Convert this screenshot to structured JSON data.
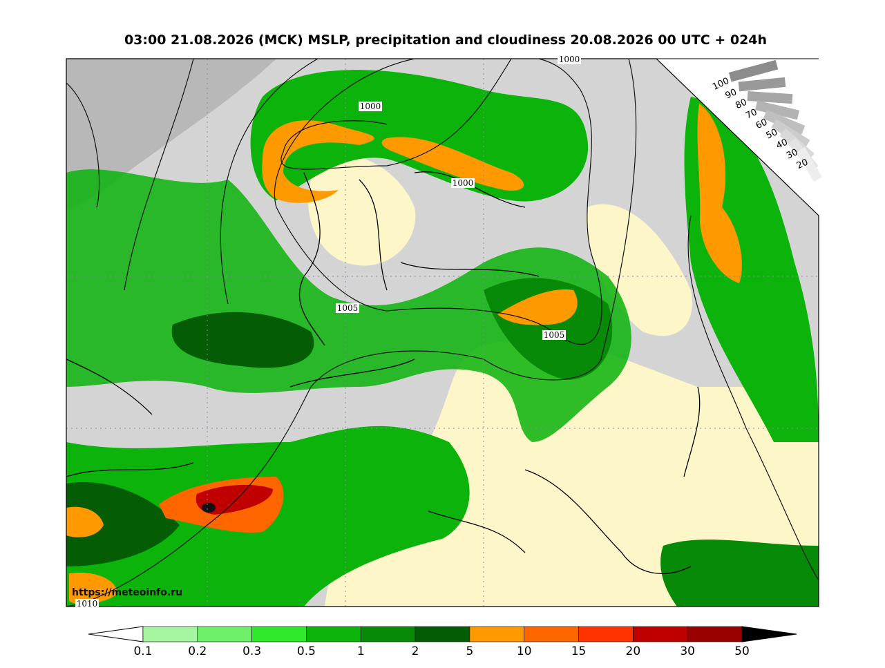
{
  "header": {
    "title": "03:00 21.08.2026 (MCK) MSLP, precipitation and cloudiness 20.08.2026 00 UTC + 024h"
  },
  "map": {
    "isobar_labels": [
      "1000",
      "1000",
      "1000",
      "1005",
      "1005",
      "1010"
    ],
    "credit": "https://meteoinfo.ru"
  },
  "cloud_scale": {
    "labels": [
      "100",
      "90",
      "80",
      "70",
      "60",
      "50",
      "40",
      "30",
      "20"
    ],
    "colors": [
      "#8c8c8c",
      "#999999",
      "#a6a6a6",
      "#b3b3b3",
      "#bfbfbf",
      "#cccccc",
      "#d9d9d9",
      "#e3e3e3",
      "#ededed"
    ]
  },
  "colorbar": {
    "labels": [
      "0.1",
      "0.2",
      "0.3",
      "0.5",
      "1",
      "2",
      "5",
      "10",
      "15",
      "20",
      "30",
      "50"
    ],
    "colors": [
      "#a6f5a0",
      "#6ef06a",
      "#2ee82a",
      "#0bb30b",
      "#078a07",
      "#045c04",
      "#ff9900",
      "#ff6600",
      "#ff3300",
      "#c00000",
      "#990000"
    ],
    "under": "#ffffff",
    "over": "#000000"
  }
}
